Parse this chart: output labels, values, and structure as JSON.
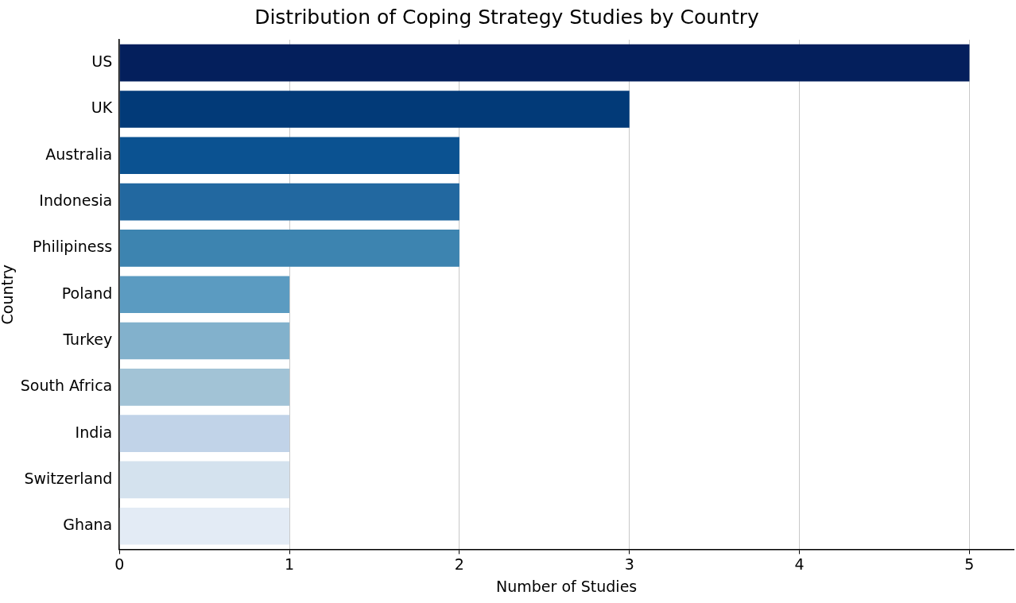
{
  "chart_data": {
    "type": "bar",
    "orientation": "horizontal",
    "title": "Distribution of Coping Strategy Studies by Country",
    "xlabel": "Number of Studies",
    "ylabel": "Country",
    "categories": [
      "US",
      "UK",
      "Australia",
      "Indonesia",
      "Philipiness",
      "Poland",
      "Turkey",
      "South Africa",
      "India",
      "Switzerland",
      "Ghana"
    ],
    "values": [
      5,
      3,
      2,
      2,
      2,
      1,
      1,
      1,
      1,
      1,
      1
    ],
    "colors": [
      "#041f5c",
      "#023a78",
      "#0b5291",
      "#2268a0",
      "#3d84b0",
      "#5b9bc1",
      "#82b1cc",
      "#a2c3d6",
      "#c1d3e8",
      "#d4e2ee",
      "#e3ebf5"
    ],
    "xlim": [
      0,
      5.26
    ],
    "xticks": [
      0,
      1,
      2,
      3,
      4,
      5
    ],
    "grid": "x",
    "legend": false
  }
}
